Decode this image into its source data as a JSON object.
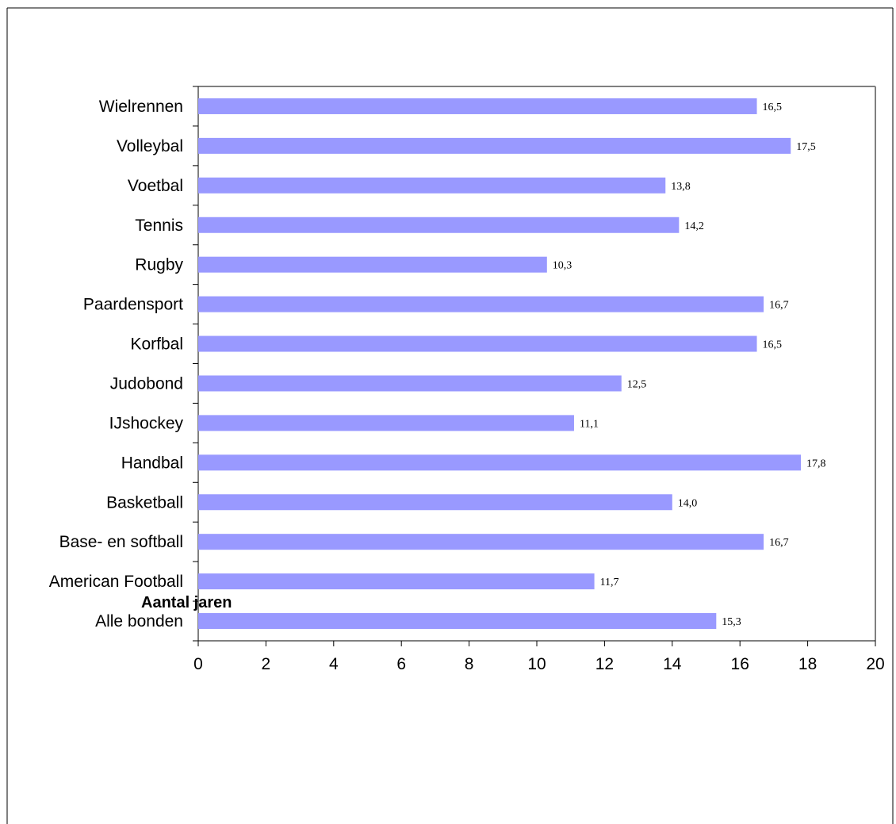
{
  "chart_data": {
    "type": "bar",
    "orientation": "horizontal",
    "categories": [
      "Wielrennen",
      "Volleybal",
      "Voetbal",
      "Tennis",
      "Rugby",
      "Paardensport",
      "Korfbal",
      "Judobond",
      "IJshockey",
      "Handbal",
      "Basketball",
      "Base- en softball",
      "American Football",
      "Alle bonden"
    ],
    "values": [
      16.5,
      17.5,
      13.8,
      14.2,
      10.3,
      16.7,
      16.5,
      12.5,
      11.1,
      17.8,
      14.0,
      16.7,
      11.7,
      15.3
    ],
    "value_labels": [
      "16,5",
      "17,5",
      "13,8",
      "14,2",
      "10,3",
      "16,7",
      "16,5",
      "12,5",
      "11,1",
      "17,8",
      "14,0",
      "16,7",
      "11,7",
      "15,3"
    ],
    "xlim": [
      0,
      20
    ],
    "xticks": [
      "0",
      "2",
      "4",
      "6",
      "8",
      "10",
      "12",
      "14",
      "16",
      "18",
      "20"
    ],
    "xlabel": "Aantal jaren",
    "title": "",
    "grid": false,
    "legend": "none",
    "colors": {
      "bar": "#9999ff",
      "plot_border": "#808080",
      "axis": "#000000",
      "frame": "#000000"
    }
  }
}
